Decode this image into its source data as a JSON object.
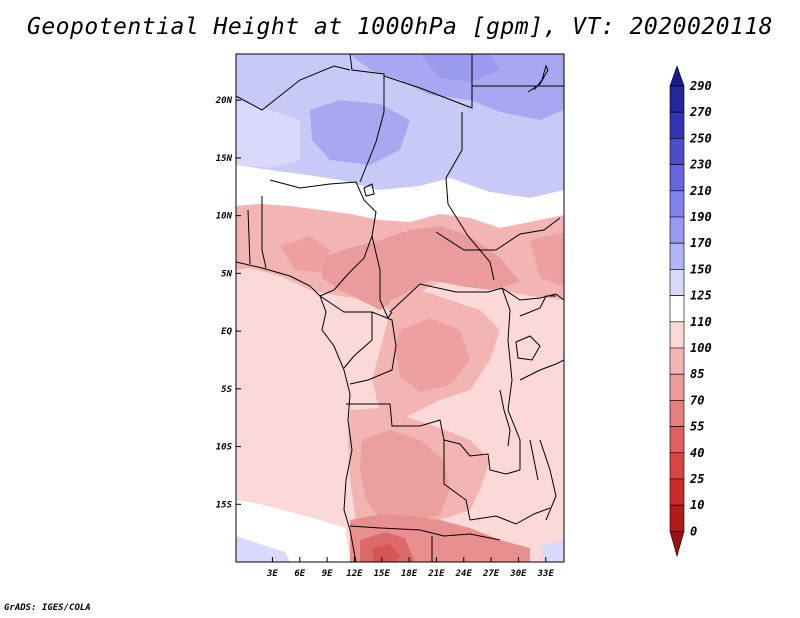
{
  "title": "Geopotential Height at 1000hPa [gpm], VT: 2020020118",
  "footer": "GrADS: IGES/COLA",
  "map": {
    "variable": "Geopotential Height",
    "level": "1000hPa",
    "units": "gpm",
    "valid_time": "2020020118",
    "lon_range_deg": [
      -1,
      35
    ],
    "lat_range_deg": [
      -20,
      24
    ],
    "lon_ticks": [
      {
        "lon": 3,
        "label": "3E"
      },
      {
        "lon": 6,
        "label": "6E"
      },
      {
        "lon": 9,
        "label": "9E"
      },
      {
        "lon": 12,
        "label": "12E"
      },
      {
        "lon": 15,
        "label": "15E"
      },
      {
        "lon": 18,
        "label": "18E"
      },
      {
        "lon": 21,
        "label": "21E"
      },
      {
        "lon": 24,
        "label": "24E"
      },
      {
        "lon": 27,
        "label": "27E"
      },
      {
        "lon": 30,
        "label": "30E"
      },
      {
        "lon": 33,
        "label": "33E"
      }
    ],
    "lat_ticks": [
      {
        "lat": 20,
        "label": "20N"
      },
      {
        "lat": 15,
        "label": "15N"
      },
      {
        "lat": 10,
        "label": "10N"
      },
      {
        "lat": 5,
        "label": "5N"
      },
      {
        "lat": 0,
        "label": "EQ"
      },
      {
        "lat": -5,
        "label": "5S"
      },
      {
        "lat": -10,
        "label": "10S"
      },
      {
        "lat": -15,
        "label": "15S"
      }
    ]
  },
  "colorbar": {
    "labels": [
      "290",
      "270",
      "250",
      "230",
      "210",
      "190",
      "170",
      "150",
      "125",
      "110",
      "100",
      "85",
      "70",
      "55",
      "40",
      "25",
      "10",
      "0"
    ],
    "colors": [
      "#1a1a8c",
      "#262699",
      "#3333b3",
      "#4d4dcc",
      "#6666dd",
      "#8080ee",
      "#9999f2",
      "#b3b3f7",
      "#d9d9fb",
      "#ffffff",
      "#fbd9d9",
      "#f5b5b5",
      "#ee9a9a",
      "#e77f7f",
      "#e06060",
      "#d94545",
      "#cc2a2a",
      "#b31a1a",
      "#991111"
    ]
  },
  "field_regions": [
    {
      "name": "north-west-lavender",
      "level": "150-170"
    },
    {
      "name": "north-east-purple",
      "level": "170-190"
    },
    {
      "name": "sahel-white",
      "level": "110-125"
    },
    {
      "name": "central-africa-pink",
      "level": "85-100"
    },
    {
      "name": "angola-salmon",
      "level": "70-85"
    },
    {
      "name": "namibia-low",
      "level": "40-55"
    }
  ]
}
